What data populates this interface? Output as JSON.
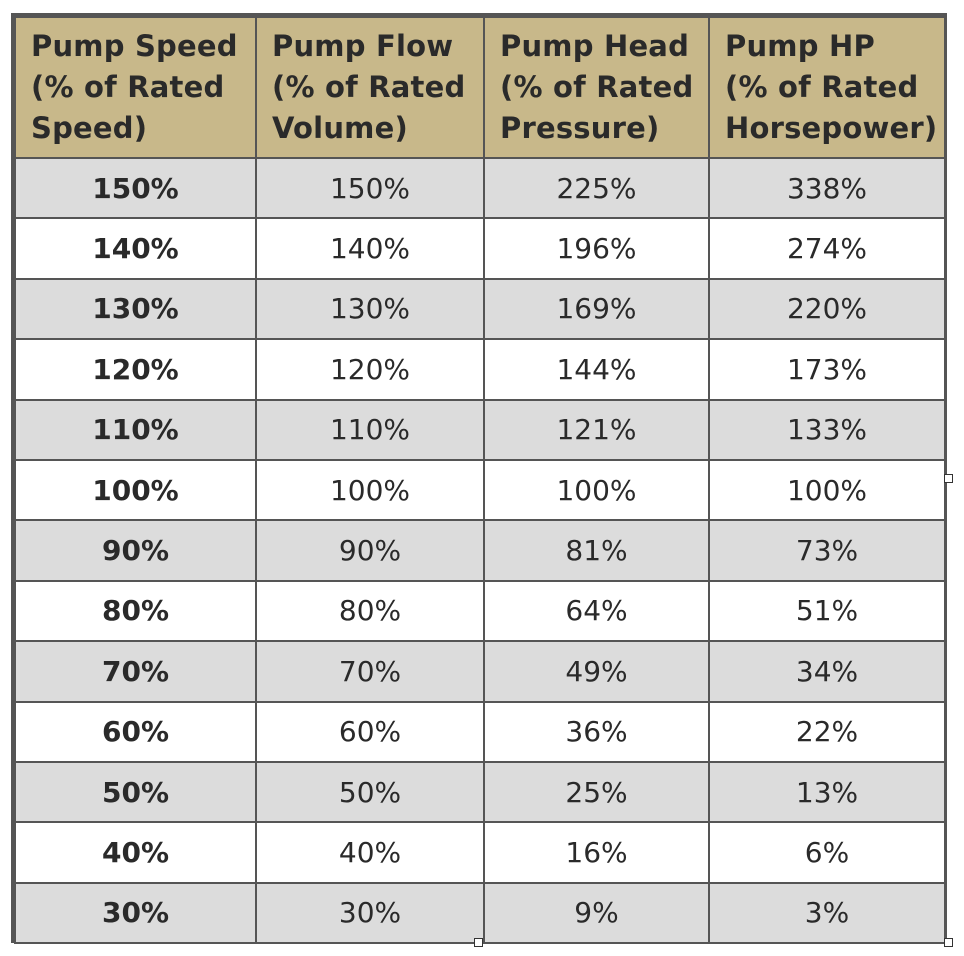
{
  "table": {
    "headers": [
      [
        "Pump Speed",
        "(% of Rated",
        "Speed)"
      ],
      [
        "Pump Flow",
        "(% of Rated",
        "Volume)"
      ],
      [
        "Pump Head",
        "(% of Rated",
        "Pressure)"
      ],
      [
        "Pump HP",
        "(% of Rated",
        "Horsepower)"
      ]
    ],
    "rows": [
      [
        "150%",
        "150%",
        "225%",
        "338%"
      ],
      [
        "140%",
        "140%",
        "196%",
        "274%"
      ],
      [
        "130%",
        "130%",
        "169%",
        "220%"
      ],
      [
        "120%",
        "120%",
        "144%",
        "173%"
      ],
      [
        "110%",
        "110%",
        "121%",
        "133%"
      ],
      [
        "100%",
        "100%",
        "100%",
        "100%"
      ],
      [
        "90%",
        "90%",
        "81%",
        "73%"
      ],
      [
        "80%",
        "80%",
        "64%",
        "51%"
      ],
      [
        "70%",
        "70%",
        "49%",
        "34%"
      ],
      [
        "60%",
        "60%",
        "36%",
        "22%"
      ],
      [
        "50%",
        "50%",
        "25%",
        "13%"
      ],
      [
        "40%",
        "40%",
        "16%",
        "6%"
      ],
      [
        "30%",
        "30%",
        "9%",
        "3%"
      ]
    ]
  },
  "colors": {
    "header_background": "#c8b88a",
    "shaded_row": "#dcdcdc",
    "plain_row": "#ffffff",
    "grid_lines": "#555555"
  }
}
